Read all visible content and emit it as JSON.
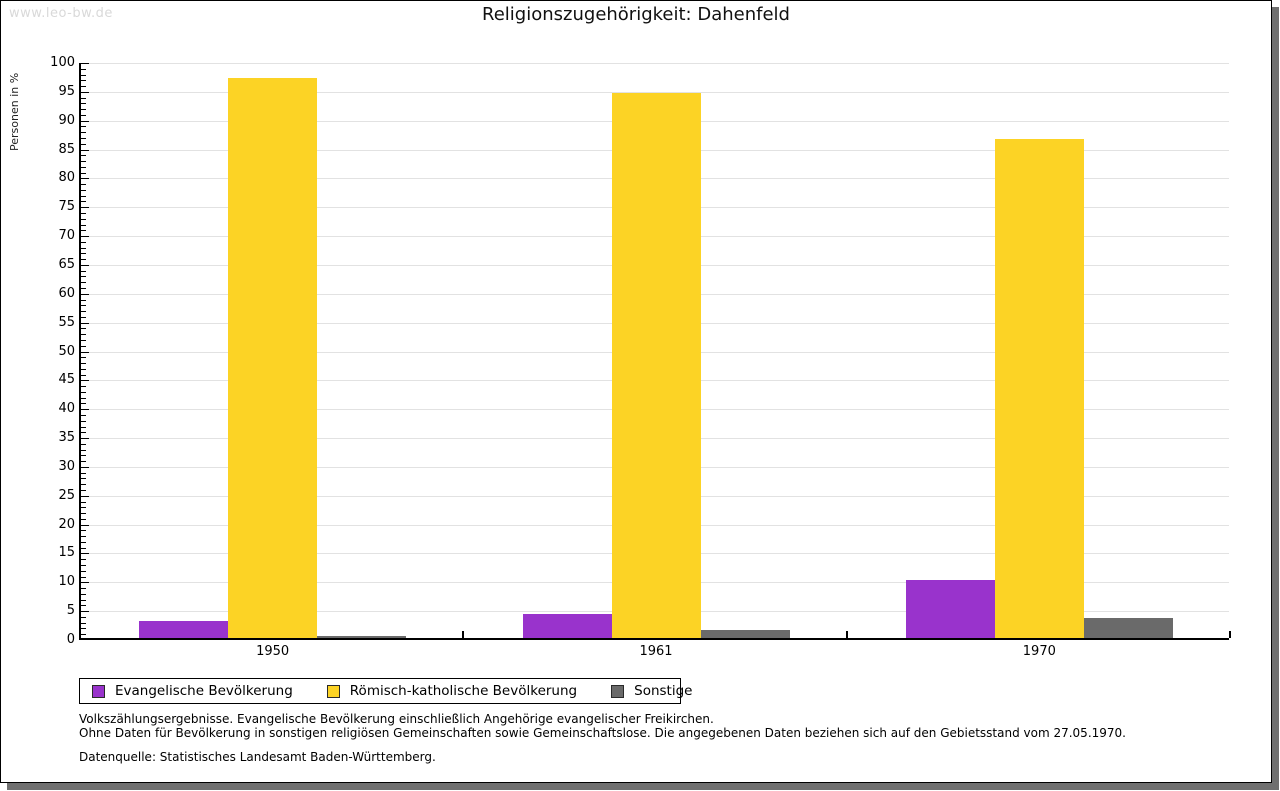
{
  "watermark": "www.leo-bw.de",
  "chart_data": {
    "type": "bar",
    "title": "Religionszugehörigkeit: Dahenfeld",
    "ylabel": "Personen in %",
    "xlabel": "",
    "ylim": [
      0,
      100
    ],
    "ytick_step": 5,
    "minor_tick_step": 1,
    "grid": true,
    "legend_position": "bottom",
    "categories": [
      "1950",
      "1961",
      "1970"
    ],
    "series": [
      {
        "name": "Evangelische Bevölkerung",
        "color": "#9933cc",
        "values": [
          2.9,
          4.2,
          10.1
        ]
      },
      {
        "name": "Römisch-katholische Bevölkerung",
        "color": "#fcd325",
        "values": [
          97.1,
          94.5,
          86.5
        ]
      },
      {
        "name": "Sonstige",
        "color": "#6a6a6a",
        "values": [
          0.4,
          1.4,
          3.5
        ]
      }
    ]
  },
  "footnotes": {
    "line1": "Volkszählungsergebnisse. Evangelische Bevölkerung einschließlich Angehörige evangelischer Freikirchen.",
    "line2": "Ohne Daten für Bevölkerung in sonstigen religiösen Gemeinschaften sowie Gemeinschaftslose. Die angegebenen Daten beziehen sich auf den Gebietsstand vom 27.05.1970.",
    "source": "Datenquelle: Statistisches Landesamt Baden-Württemberg."
  }
}
